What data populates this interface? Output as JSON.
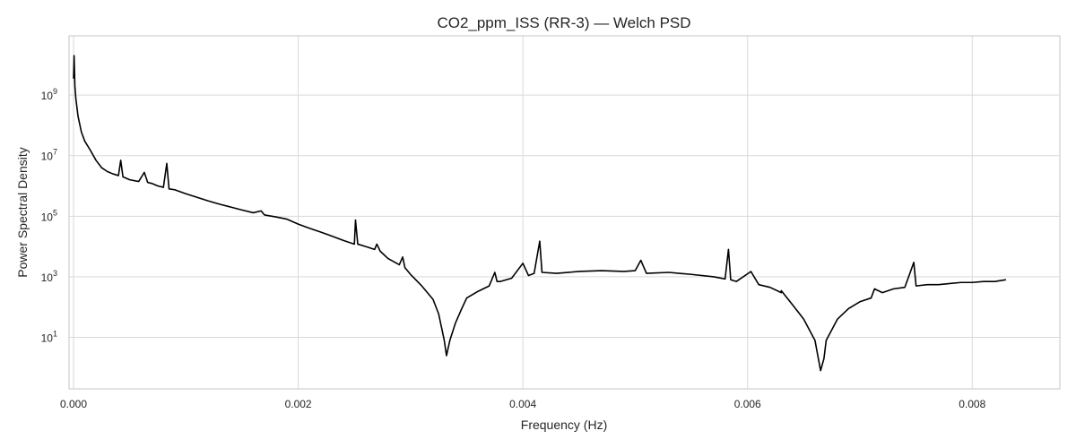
{
  "chart_data": {
    "type": "line",
    "title": "CO2_ppm_ISS (RR-3) — Welch PSD",
    "xlabel": "Frequency (Hz)",
    "ylabel": "Power Spectral Density",
    "xlim": [
      -4e-05,
      0.00878
    ],
    "ylim": [
      0.2,
      90000000000
    ],
    "yscale": "log",
    "grid": true,
    "x_ticks": [
      {
        "value": 0.0,
        "label": "0.000"
      },
      {
        "value": 0.002,
        "label": "0.002"
      },
      {
        "value": 0.004,
        "label": "0.004"
      },
      {
        "value": 0.006,
        "label": "0.006"
      },
      {
        "value": 0.008,
        "label": "0.008"
      }
    ],
    "y_ticks": [
      {
        "value": 10,
        "base": "10",
        "exp": "1"
      },
      {
        "value": 1000,
        "base": "10",
        "exp": "3"
      },
      {
        "value": 100000,
        "base": "10",
        "exp": "5"
      },
      {
        "value": 10000000,
        "base": "10",
        "exp": "7"
      },
      {
        "value": 1000000000,
        "base": "10",
        "exp": "9"
      }
    ],
    "series": [
      {
        "color": "#000000",
        "points": [
          [
            0.0,
            3500000000
          ],
          [
            5e-06,
            20000000000
          ],
          [
            1.2e-05,
            2000000000
          ],
          [
            2e-05,
            800000000
          ],
          [
            4e-05,
            200000000
          ],
          [
            7e-05,
            60000000
          ],
          [
            0.0001,
            30000000
          ],
          [
            0.00015,
            15000000
          ],
          [
            0.0002,
            7000000
          ],
          [
            0.00025,
            4000000
          ],
          [
            0.0003,
            3000000
          ],
          [
            0.00035,
            2500000
          ],
          [
            0.0004,
            2200000
          ],
          [
            0.00042,
            7000000
          ],
          [
            0.00044,
            2000000
          ],
          [
            0.0005,
            1600000
          ],
          [
            0.00058,
            1400000
          ],
          [
            0.00063,
            2800000
          ],
          [
            0.00066,
            1300000
          ],
          [
            0.0007,
            1200000
          ],
          [
            0.00075,
            1000000
          ],
          [
            0.0008,
            900000
          ],
          [
            0.00083,
            5500000
          ],
          [
            0.00085,
            800000
          ],
          [
            0.0009,
            750000
          ],
          [
            0.001,
            550000
          ],
          [
            0.0011,
            420000
          ],
          [
            0.0012,
            320000
          ],
          [
            0.0013,
            250000
          ],
          [
            0.0014,
            200000
          ],
          [
            0.0015,
            160000
          ],
          [
            0.0016,
            130000
          ],
          [
            0.00167,
            150000
          ],
          [
            0.0017,
            110000
          ],
          [
            0.0018,
            95000
          ],
          [
            0.0019,
            80000
          ],
          [
            0.002,
            55000
          ],
          [
            0.0021,
            40000
          ],
          [
            0.0022,
            30000
          ],
          [
            0.0023,
            22000
          ],
          [
            0.0024,
            16000
          ],
          [
            0.0025,
            12000
          ],
          [
            0.00251,
            75000
          ],
          [
            0.00253,
            12000
          ],
          [
            0.0026,
            10000
          ],
          [
            0.00268,
            8000
          ],
          [
            0.0027,
            12000
          ],
          [
            0.00273,
            7000
          ],
          [
            0.0028,
            4000
          ],
          [
            0.0029,
            2500
          ],
          [
            0.00293,
            4500
          ],
          [
            0.00295,
            2000
          ],
          [
            0.003,
            1200
          ],
          [
            0.0031,
            500
          ],
          [
            0.0032,
            180
          ],
          [
            0.00325,
            60
          ],
          [
            0.0033,
            8
          ],
          [
            0.00332,
            2.5
          ],
          [
            0.00335,
            8
          ],
          [
            0.0034,
            30
          ],
          [
            0.00345,
            80
          ],
          [
            0.0035,
            200
          ],
          [
            0.0036,
            330
          ],
          [
            0.0037,
            500
          ],
          [
            0.00375,
            1400
          ],
          [
            0.00377,
            700
          ],
          [
            0.0038,
            700
          ],
          [
            0.0039,
            900
          ],
          [
            0.004,
            2800
          ],
          [
            0.00405,
            1100
          ],
          [
            0.0041,
            1300
          ],
          [
            0.00415,
            15000
          ],
          [
            0.00417,
            1400
          ],
          [
            0.0043,
            1300
          ],
          [
            0.0045,
            1500
          ],
          [
            0.0047,
            1600
          ],
          [
            0.0049,
            1500
          ],
          [
            0.005,
            1600
          ],
          [
            0.00505,
            3500
          ],
          [
            0.0051,
            1300
          ],
          [
            0.0053,
            1400
          ],
          [
            0.0055,
            1200
          ],
          [
            0.0057,
            1000
          ],
          [
            0.0058,
            850
          ],
          [
            0.00583,
            8000
          ],
          [
            0.00585,
            800
          ],
          [
            0.0059,
            700
          ],
          [
            0.00603,
            1500
          ],
          [
            0.0061,
            550
          ],
          [
            0.0062,
            450
          ],
          [
            0.0063,
            300
          ],
          [
            0.0063,
            350
          ],
          [
            0.0064,
            120
          ],
          [
            0.0065,
            40
          ],
          [
            0.0066,
            8
          ],
          [
            0.00665,
            0.8
          ],
          [
            0.00668,
            2
          ],
          [
            0.0067,
            8
          ],
          [
            0.0068,
            40
          ],
          [
            0.0069,
            90
          ],
          [
            0.007,
            150
          ],
          [
            0.0071,
            200
          ],
          [
            0.00713,
            400
          ],
          [
            0.0072,
            300
          ],
          [
            0.0073,
            400
          ],
          [
            0.0074,
            450
          ],
          [
            0.00748,
            3000
          ],
          [
            0.0075,
            500
          ],
          [
            0.0076,
            550
          ],
          [
            0.0077,
            550
          ],
          [
            0.0078,
            600
          ],
          [
            0.0079,
            650
          ],
          [
            0.008,
            650
          ],
          [
            0.0081,
            700
          ],
          [
            0.0082,
            700
          ],
          [
            0.0083,
            800
          ]
        ]
      }
    ]
  }
}
